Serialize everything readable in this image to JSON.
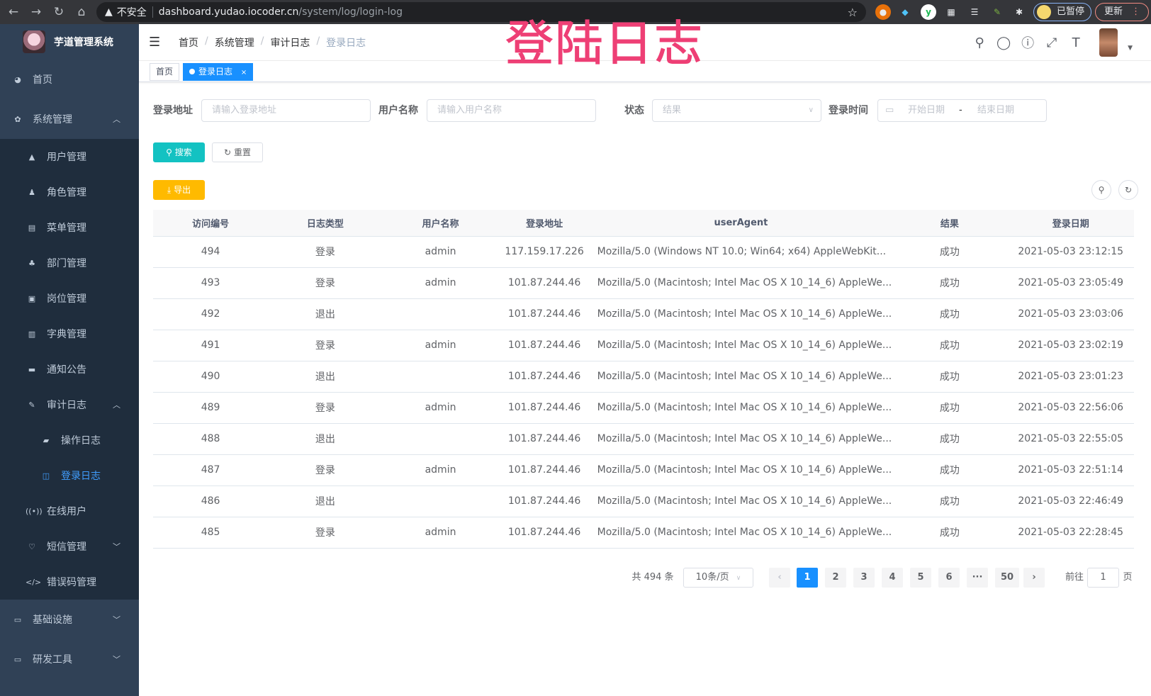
{
  "browser": {
    "security": "不安全",
    "host": "dashboard.yudao.iocoder.cn",
    "path": "/system/log/login-log",
    "paused": "已暂停",
    "update": "更新"
  },
  "overlay_title": "登陆日志",
  "sidebar": {
    "logo": "芋道管理系统",
    "items": [
      {
        "label": "首页",
        "icon": "dashboard-icon"
      },
      {
        "label": "系统管理",
        "icon": "gear-icon",
        "expanded": true,
        "children": [
          {
            "label": "用户管理",
            "icon": "user-icon"
          },
          {
            "label": "角色管理",
            "icon": "peoples-icon"
          },
          {
            "label": "菜单管理",
            "icon": "tree-table-icon"
          },
          {
            "label": "部门管理",
            "icon": "tree-icon"
          },
          {
            "label": "岗位管理",
            "icon": "post-icon"
          },
          {
            "label": "字典管理",
            "icon": "dict-icon"
          },
          {
            "label": "通知公告",
            "icon": "message-icon"
          },
          {
            "label": "审计日志",
            "icon": "log-icon",
            "expanded": true,
            "children": [
              {
                "label": "操作日志",
                "icon": "form-icon"
              },
              {
                "label": "登录日志",
                "icon": "logininfor-icon",
                "active": true
              }
            ]
          },
          {
            "label": "在线用户",
            "icon": "online-icon"
          },
          {
            "label": "短信管理",
            "icon": "shield-icon",
            "collapsed": true
          },
          {
            "label": "错误码管理",
            "icon": "code-icon"
          }
        ]
      },
      {
        "label": "基础设施",
        "icon": "monitor-icon",
        "collapsed": true
      },
      {
        "label": "研发工具",
        "icon": "tool-icon",
        "collapsed": true
      }
    ]
  },
  "breadcrumb": [
    "首页",
    "系统管理",
    "审计日志",
    "登录日志"
  ],
  "tags": [
    {
      "label": "首页"
    },
    {
      "label": "登录日志",
      "active": true
    }
  ],
  "filters": {
    "address_label": "登录地址",
    "address_placeholder": "请输入登录地址",
    "username_label": "用户名称",
    "username_placeholder": "请输入用户名称",
    "status_label": "状态",
    "status_placeholder": "结果",
    "time_label": "登录时间",
    "start_placeholder": "开始日期",
    "range_sep": "-",
    "end_placeholder": "结束日期"
  },
  "buttons": {
    "search": "搜索",
    "reset": "重置",
    "export": "导出"
  },
  "colors": {
    "sidebar": "#304156",
    "primary": "#1890ff",
    "search": "#13c2c2",
    "export": "#ffba00",
    "overlay": "#ee3f75"
  },
  "table": {
    "columns": [
      "访问编号",
      "日志类型",
      "用户名称",
      "登录地址",
      "userAgent",
      "结果",
      "登录日期"
    ],
    "rows": [
      [
        "494",
        "登录",
        "admin",
        "117.159.17.226",
        "Mozilla/5.0 (Windows NT 10.0; Win64; x64) AppleWebKit...",
        "成功",
        "2021-05-03 23:12:15"
      ],
      [
        "493",
        "登录",
        "admin",
        "101.87.244.46",
        "Mozilla/5.0 (Macintosh; Intel Mac OS X 10_14_6) AppleWe...",
        "成功",
        "2021-05-03 23:05:49"
      ],
      [
        "492",
        "退出",
        "",
        "101.87.244.46",
        "Mozilla/5.0 (Macintosh; Intel Mac OS X 10_14_6) AppleWe...",
        "成功",
        "2021-05-03 23:03:06"
      ],
      [
        "491",
        "登录",
        "admin",
        "101.87.244.46",
        "Mozilla/5.0 (Macintosh; Intel Mac OS X 10_14_6) AppleWe...",
        "成功",
        "2021-05-03 23:02:19"
      ],
      [
        "490",
        "退出",
        "",
        "101.87.244.46",
        "Mozilla/5.0 (Macintosh; Intel Mac OS X 10_14_6) AppleWe...",
        "成功",
        "2021-05-03 23:01:23"
      ],
      [
        "489",
        "登录",
        "admin",
        "101.87.244.46",
        "Mozilla/5.0 (Macintosh; Intel Mac OS X 10_14_6) AppleWe...",
        "成功",
        "2021-05-03 22:56:06"
      ],
      [
        "488",
        "退出",
        "",
        "101.87.244.46",
        "Mozilla/5.0 (Macintosh; Intel Mac OS X 10_14_6) AppleWe...",
        "成功",
        "2021-05-03 22:55:05"
      ],
      [
        "487",
        "登录",
        "admin",
        "101.87.244.46",
        "Mozilla/5.0 (Macintosh; Intel Mac OS X 10_14_6) AppleWe...",
        "成功",
        "2021-05-03 22:51:14"
      ],
      [
        "486",
        "退出",
        "",
        "101.87.244.46",
        "Mozilla/5.0 (Macintosh; Intel Mac OS X 10_14_6) AppleWe...",
        "成功",
        "2021-05-03 22:46:49"
      ],
      [
        "485",
        "登录",
        "admin",
        "101.87.244.46",
        "Mozilla/5.0 (Macintosh; Intel Mac OS X 10_14_6) AppleWe...",
        "成功",
        "2021-05-03 22:28:45"
      ]
    ]
  },
  "pagination": {
    "total": "共 494 条",
    "page_size": "10条/页",
    "pages": [
      "1",
      "2",
      "3",
      "4",
      "5",
      "6",
      "···",
      "50"
    ],
    "current": "1",
    "goto_label": "前往",
    "goto_value": "1",
    "goto_suffix": "页"
  }
}
